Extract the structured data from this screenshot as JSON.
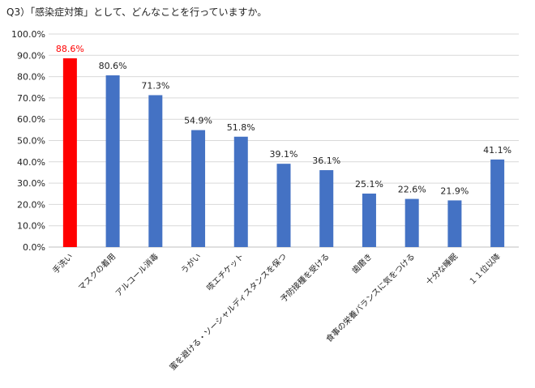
{
  "chart_data": {
    "type": "bar",
    "title": "Q3）「感染症対策」として、どんなことを行っていますか。",
    "categories": [
      "手洗い",
      "マスクの着用",
      "アルコール消毒",
      "うがい",
      "咳エチケット",
      "蜜を避ける・ソーシャルディスタンスを保つ",
      "予防接種を受ける",
      "歯磨き",
      "食事の栄養バランスに気をつける",
      "十分な睡眠",
      "１１位以降"
    ],
    "values": [
      88.6,
      80.6,
      71.3,
      54.9,
      51.8,
      39.1,
      36.1,
      25.1,
      22.6,
      21.9,
      41.1
    ],
    "data_labels": [
      "88.6%",
      "80.6%",
      "71.3%",
      "54.9%",
      "51.8%",
      "39.1%",
      "36.1%",
      "25.1%",
      "22.6%",
      "21.9%",
      "41.1%"
    ],
    "y_ticks": [
      "0.0%",
      "10.0%",
      "20.0%",
      "30.0%",
      "40.0%",
      "50.0%",
      "60.0%",
      "70.0%",
      "80.0%",
      "90.0%",
      "100.0%"
    ],
    "ylim": [
      0,
      100
    ],
    "grid": true,
    "legend": "none",
    "colors": {
      "highlight": "#ff0000",
      "bar": "#4472c4",
      "highlight_label": "#ff0000",
      "label": "#222222",
      "grid": "#d9d9d9"
    },
    "highlight_index": 0
  }
}
